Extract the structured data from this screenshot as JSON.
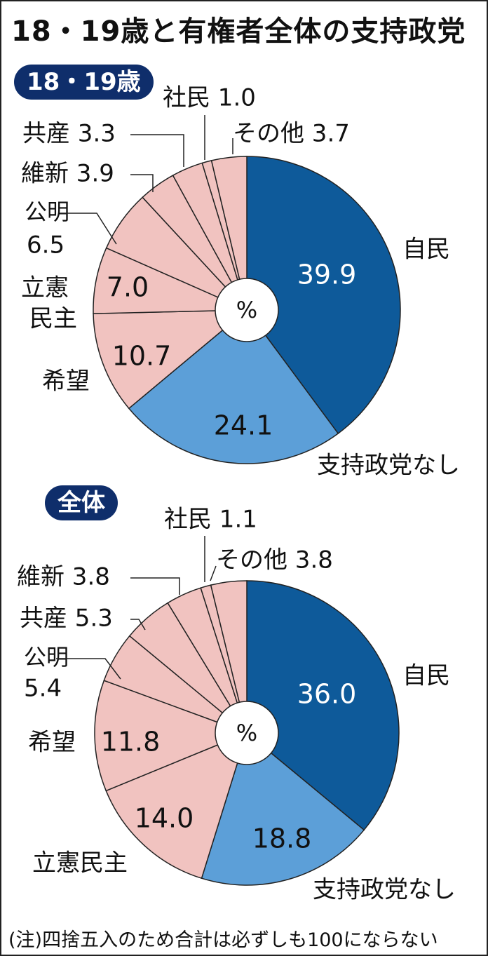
{
  "chart_title": "18・19歳と有権者全体の支持政党",
  "footnote": "(注)四捨五入のため合計は必ずしも100にならない",
  "colors": {
    "jimin": "#0e5a9a",
    "none": "#5c9fd8",
    "others": "#f1c3c0",
    "badge": "#0f2e6b",
    "line": "#222222"
  },
  "chart_data": [
    {
      "type": "pie",
      "title": "18・19歳",
      "center_label": "%",
      "slices": [
        {
          "label": "自民",
          "value": 39.9,
          "value_text": "39.9"
        },
        {
          "label": "支持政党なし",
          "value": 24.1,
          "value_text": "24.1"
        },
        {
          "label": "希望",
          "value": 10.7,
          "value_text": "10.7"
        },
        {
          "label": "立憲民主",
          "value": 7.0,
          "value_text": "7.0"
        },
        {
          "label": "公明",
          "value": 6.5,
          "value_text": "6.5"
        },
        {
          "label": "維新",
          "value": 3.9,
          "value_text": "3.9"
        },
        {
          "label": "共産",
          "value": 3.3,
          "value_text": "3.3"
        },
        {
          "label": "社民",
          "value": 1.0,
          "value_text": "1.0"
        },
        {
          "label": "その他",
          "value": 3.7,
          "value_text": "3.7"
        }
      ]
    },
    {
      "type": "pie",
      "title": "全体",
      "center_label": "%",
      "slices": [
        {
          "label": "自民",
          "value": 36.0,
          "value_text": "36.0"
        },
        {
          "label": "支持政党なし",
          "value": 18.8,
          "value_text": "18.8"
        },
        {
          "label": "立憲民主",
          "value": 14.0,
          "value_text": "14.0"
        },
        {
          "label": "希望",
          "value": 11.8,
          "value_text": "11.8"
        },
        {
          "label": "公明",
          "value": 5.4,
          "value_text": "5.4"
        },
        {
          "label": "共産",
          "value": 5.3,
          "value_text": "5.3"
        },
        {
          "label": "維新",
          "value": 3.8,
          "value_text": "3.8"
        },
        {
          "label": "社民",
          "value": 1.1,
          "value_text": "1.1"
        },
        {
          "label": "その他",
          "value": 3.8,
          "value_text": "3.8"
        }
      ]
    }
  ]
}
